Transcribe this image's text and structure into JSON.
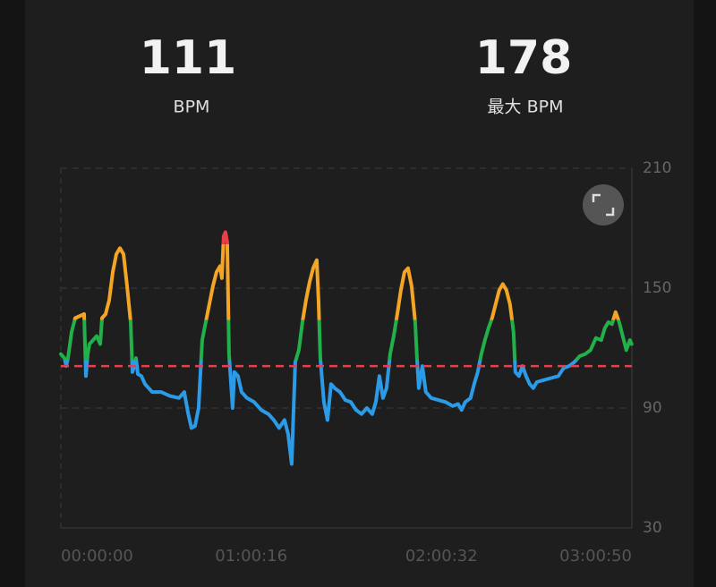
{
  "stats": [
    {
      "value": 111,
      "label": "BPM"
    },
    {
      "value": 178,
      "label": "最大 BPM"
    }
  ],
  "chart_data": {
    "type": "line",
    "x": [
      0,
      68,
      102,
      136,
      204,
      272,
      442,
      476,
      510,
      544,
      612,
      680,
      748,
      782,
      850,
      918,
      986,
      1054,
      1122,
      1190,
      1258,
      1326,
      1360,
      1394,
      1428,
      1462,
      1530,
      1598,
      1734,
      1904,
      2074,
      2244,
      2346,
      2414,
      2482,
      2550,
      2618,
      2686,
      2754,
      2822,
      2890,
      2958,
      3026,
      3060,
      3094,
      3128,
      3162,
      3196,
      3264,
      3298,
      3366,
      3434,
      3536,
      3672,
      3808,
      3944,
      4046,
      4148,
      4250,
      4318,
      4386,
      4454,
      4522,
      4590,
      4658,
      4726,
      4794,
      4862,
      4896,
      4930,
      4998,
      5066,
      5134,
      5202,
      5304,
      5406,
      5508,
      5610,
      5712,
      5814,
      5916,
      5984,
      6052,
      6120,
      6188,
      6256,
      6324,
      6392,
      6460,
      6528,
      6596,
      6664,
      6732,
      6766,
      6800,
      6868,
      6936,
      7038,
      7174,
      7310,
      7446,
      7548,
      7616,
      7684,
      7786,
      7854,
      7922,
      7990,
      8058,
      8126,
      8194,
      8262,
      8330,
      8398,
      8466,
      8534,
      8602,
      8636,
      8704,
      8772,
      8840,
      8908,
      8976,
      9044,
      9180,
      9316,
      9452,
      9554,
      9656,
      9758,
      9860,
      9962,
      10064,
      10166,
      10268,
      10336,
      10404,
      10472,
      10540,
      10608,
      10676,
      10744,
      10812,
      10846
    ],
    "values": [
      117,
      115,
      111,
      115,
      128,
      135,
      137,
      106,
      117,
      122,
      124,
      126,
      122,
      135,
      137,
      144,
      158,
      167,
      170,
      167,
      151,
      133,
      108,
      111,
      115,
      107,
      106,
      102,
      98,
      98,
      96,
      95,
      98,
      88,
      80,
      81,
      90,
      124,
      133,
      142,
      151,
      158,
      161,
      155,
      176,
      178,
      173,
      117,
      90,
      108,
      106,
      98,
      95,
      93,
      89,
      87,
      84,
      80,
      84,
      77,
      62,
      113,
      119,
      133,
      144,
      153,
      160,
      164,
      144,
      115,
      93,
      84,
      102,
      100,
      98,
      94,
      93,
      89,
      87,
      90,
      87,
      93,
      106,
      95,
      100,
      117,
      126,
      137,
      149,
      158,
      160,
      151,
      133,
      115,
      100,
      111,
      98,
      95,
      94,
      93,
      91,
      92,
      89,
      93,
      95,
      102,
      108,
      117,
      124,
      130,
      135,
      142,
      149,
      152,
      149,
      142,
      128,
      108,
      106,
      111,
      106,
      102,
      100,
      103,
      104,
      105,
      106,
      110,
      111,
      113,
      116,
      117,
      119,
      125,
      124,
      130,
      133,
      132,
      138,
      133,
      126,
      119,
      124,
      122
    ],
    "zones": [
      {
        "min": 30,
        "color": "#2b9be8"
      },
      {
        "min": 114,
        "color": "#22b04b"
      },
      {
        "min": 134,
        "color": "#f5a524"
      },
      {
        "min": 172,
        "color": "#e8404a"
      }
    ],
    "average_color": "#e8404a",
    "xlim": [
      0,
      10850
    ],
    "xticks": [
      {
        "value": 0,
        "label": "00:00:00"
      },
      {
        "value": 3616,
        "label": "01:00:16"
      },
      {
        "value": 7232,
        "label": "02:00:32"
      },
      {
        "value": 10850,
        "label": "03:00:50"
      }
    ],
    "ylim": [
      30,
      210
    ],
    "yticks": [
      30,
      90,
      150,
      210
    ],
    "grid": true
  }
}
